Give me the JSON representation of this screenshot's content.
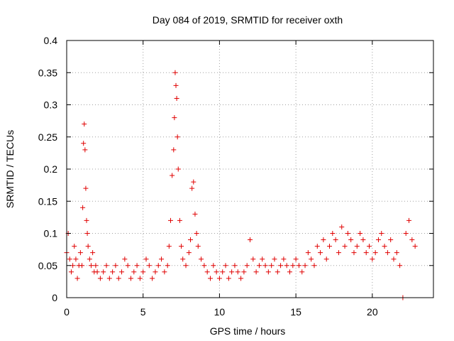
{
  "chart_data": {
    "type": "scatter",
    "title": "Day 084 of 2019, SRMTID for receiver oxth",
    "xlabel": "GPS time / hours",
    "ylabel": "SRMTID / TECUs",
    "xlim": [
      0,
      24
    ],
    "ylim": [
      0,
      0.4
    ],
    "xticks": [
      0,
      5,
      10,
      15,
      20
    ],
    "xtick_labels": [
      "0",
      "5",
      "10",
      "15",
      "20"
    ],
    "yticks": [
      0,
      0.05,
      0.1,
      0.15,
      0.2,
      0.25,
      0.3,
      0.35,
      0.4
    ],
    "ytick_labels": [
      "0",
      "0.05",
      "0.1",
      "0.15",
      "0.2",
      "0.25",
      "0.3",
      "0.35",
      "0.4"
    ],
    "grid": true,
    "marker": "+",
    "color": "#e00000",
    "series": [
      {
        "name": "SRMTID",
        "x": [
          0.0,
          0.1,
          0.2,
          0.3,
          0.4,
          0.5,
          0.6,
          0.7,
          0.8,
          0.9,
          1.0,
          1.05,
          1.1,
          1.15,
          1.2,
          1.25,
          1.3,
          1.35,
          1.4,
          1.5,
          1.6,
          1.7,
          1.8,
          1.9,
          2.0,
          2.2,
          2.4,
          2.6,
          2.8,
          3.0,
          3.2,
          3.4,
          3.6,
          3.8,
          4.0,
          4.2,
          4.4,
          4.6,
          4.8,
          5.0,
          5.2,
          5.4,
          5.6,
          5.8,
          6.0,
          6.2,
          6.4,
          6.6,
          6.7,
          6.8,
          6.9,
          7.0,
          7.05,
          7.1,
          7.15,
          7.2,
          7.25,
          7.3,
          7.4,
          7.5,
          7.6,
          7.8,
          8.0,
          8.1,
          8.2,
          8.3,
          8.4,
          8.5,
          8.6,
          8.8,
          9.0,
          9.2,
          9.4,
          9.6,
          9.8,
          10.0,
          10.2,
          10.4,
          10.6,
          10.8,
          11.0,
          11.2,
          11.4,
          11.6,
          11.8,
          12.0,
          12.2,
          12.4,
          12.6,
          12.8,
          13.0,
          13.2,
          13.4,
          13.6,
          13.8,
          14.0,
          14.2,
          14.4,
          14.6,
          14.8,
          15.0,
          15.2,
          15.4,
          15.6,
          15.8,
          16.0,
          16.2,
          16.4,
          16.6,
          16.8,
          17.0,
          17.2,
          17.4,
          17.6,
          17.8,
          18.0,
          18.2,
          18.4,
          18.6,
          18.8,
          19.0,
          19.2,
          19.4,
          19.6,
          19.8,
          20.0,
          20.2,
          20.4,
          20.6,
          20.8,
          21.0,
          21.2,
          21.4,
          21.6,
          21.8,
          22.0,
          22.2,
          22.4,
          22.6,
          22.8
        ],
        "y": [
          0.07,
          0.1,
          0.06,
          0.04,
          0.05,
          0.08,
          0.06,
          0.03,
          0.05,
          0.07,
          0.05,
          0.14,
          0.24,
          0.27,
          0.23,
          0.17,
          0.12,
          0.1,
          0.08,
          0.06,
          0.05,
          0.07,
          0.04,
          0.05,
          0.04,
          0.03,
          0.04,
          0.05,
          0.03,
          0.04,
          0.05,
          0.03,
          0.04,
          0.06,
          0.05,
          0.03,
          0.04,
          0.05,
          0.03,
          0.04,
          0.06,
          0.05,
          0.03,
          0.04,
          0.05,
          0.06,
          0.04,
          0.05,
          0.08,
          0.12,
          0.19,
          0.23,
          0.28,
          0.35,
          0.33,
          0.31,
          0.25,
          0.2,
          0.12,
          0.08,
          0.06,
          0.05,
          0.07,
          0.09,
          0.17,
          0.18,
          0.13,
          0.1,
          0.08,
          0.06,
          0.05,
          0.04,
          0.03,
          0.05,
          0.04,
          0.03,
          0.04,
          0.05,
          0.03,
          0.04,
          0.05,
          0.04,
          0.03,
          0.04,
          0.05,
          0.09,
          0.06,
          0.04,
          0.05,
          0.06,
          0.05,
          0.04,
          0.05,
          0.06,
          0.04,
          0.05,
          0.06,
          0.05,
          0.04,
          0.05,
          0.06,
          0.05,
          0.04,
          0.05,
          0.07,
          0.06,
          0.05,
          0.08,
          0.07,
          0.09,
          0.06,
          0.08,
          0.1,
          0.09,
          0.07,
          0.11,
          0.08,
          0.1,
          0.09,
          0.07,
          0.08,
          0.1,
          0.09,
          0.07,
          0.08,
          0.06,
          0.07,
          0.09,
          0.1,
          0.08,
          0.07,
          0.09,
          0.06,
          0.07,
          0.05,
          0.0,
          0.1,
          0.12,
          0.09,
          0.08
        ]
      }
    ]
  }
}
